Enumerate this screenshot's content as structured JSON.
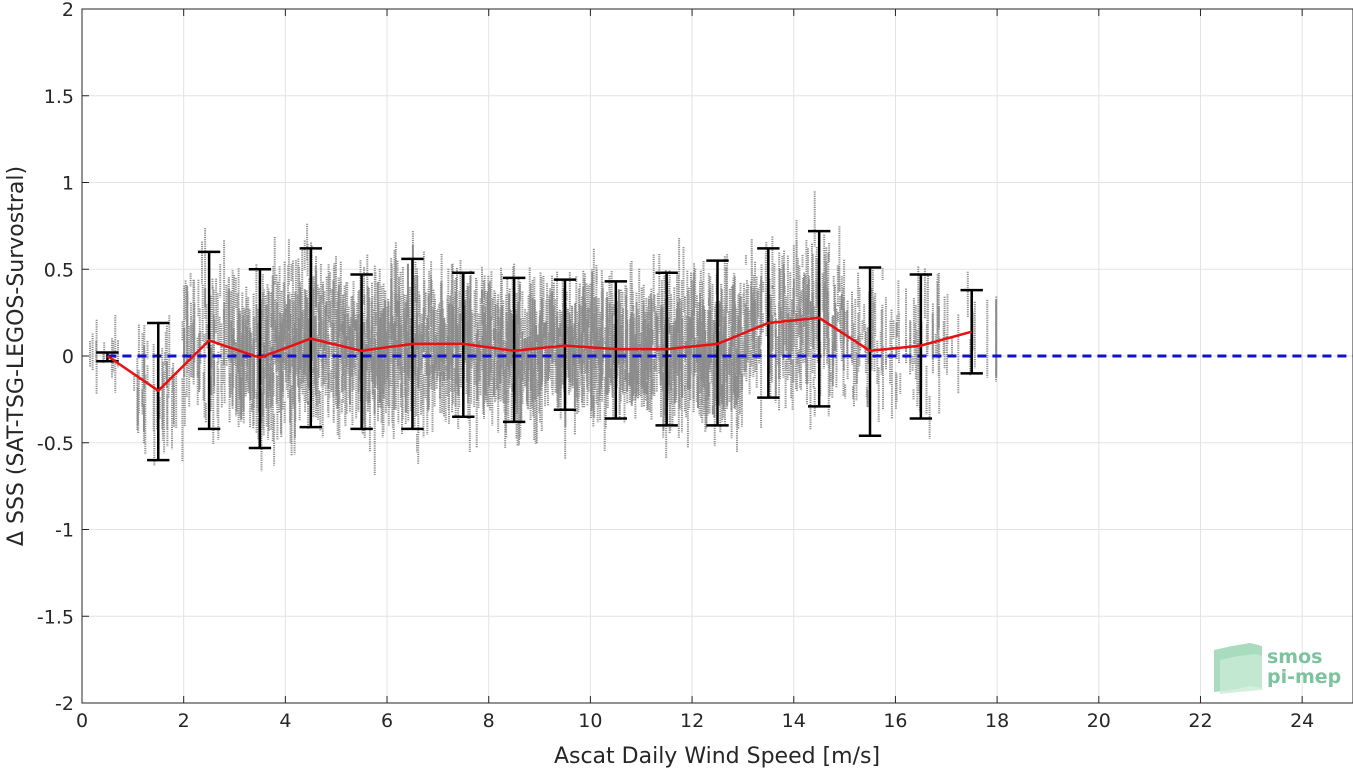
{
  "chart_data": {
    "type": "scatter",
    "xlabel": "Ascat Daily Wind Speed [m/s]",
    "ylabel": "Δ SSS (SAT-TSG-LEGOS-Survostral)",
    "xlim": [
      0,
      25
    ],
    "ylim": [
      -2,
      2
    ],
    "x_ticks": [
      0,
      2,
      4,
      6,
      8,
      10,
      12,
      14,
      16,
      18,
      20,
      22,
      24
    ],
    "y_ticks": [
      -2,
      -1.5,
      -1,
      -0.5,
      0,
      0.5,
      1,
      1.5,
      2
    ],
    "y_tick_labels": [
      "-2",
      "-1.5",
      "-1",
      "-0.5",
      "0",
      "0.5",
      "1",
      "1.5",
      "2"
    ],
    "grid": true,
    "reference_line": {
      "y": 0,
      "style": "dashed",
      "color": "#1010d0"
    },
    "scatter_color": "#808080",
    "mean_line_color": "#e81010",
    "errorbar_color": "#000000",
    "binned_stats": {
      "x": [
        0.5,
        1.5,
        2.5,
        3.5,
        4.5,
        5.5,
        6.5,
        7.5,
        8.5,
        9.5,
        10.5,
        11.5,
        12.5,
        13.5,
        14.5,
        15.5,
        16.5,
        17.5
      ],
      "mean": [
        0.0,
        -0.2,
        0.09,
        -0.01,
        0.1,
        0.03,
        0.07,
        0.07,
        0.03,
        0.06,
        0.04,
        0.04,
        0.07,
        0.19,
        0.22,
        0.03,
        0.06,
        0.14
      ],
      "upper": [
        0.02,
        0.19,
        0.6,
        0.5,
        0.62,
        0.47,
        0.56,
        0.48,
        0.45,
        0.44,
        0.43,
        0.48,
        0.55,
        0.62,
        0.72,
        0.51,
        0.47,
        0.38
      ],
      "lower": [
        -0.03,
        -0.6,
        -0.42,
        -0.53,
        -0.41,
        -0.42,
        -0.42,
        -0.35,
        -0.38,
        -0.31,
        -0.36,
        -0.4,
        -0.4,
        -0.24,
        -0.29,
        -0.46,
        -0.36,
        -0.1
      ]
    },
    "logo": {
      "line1": "smos",
      "line2": "pi-mep"
    }
  }
}
